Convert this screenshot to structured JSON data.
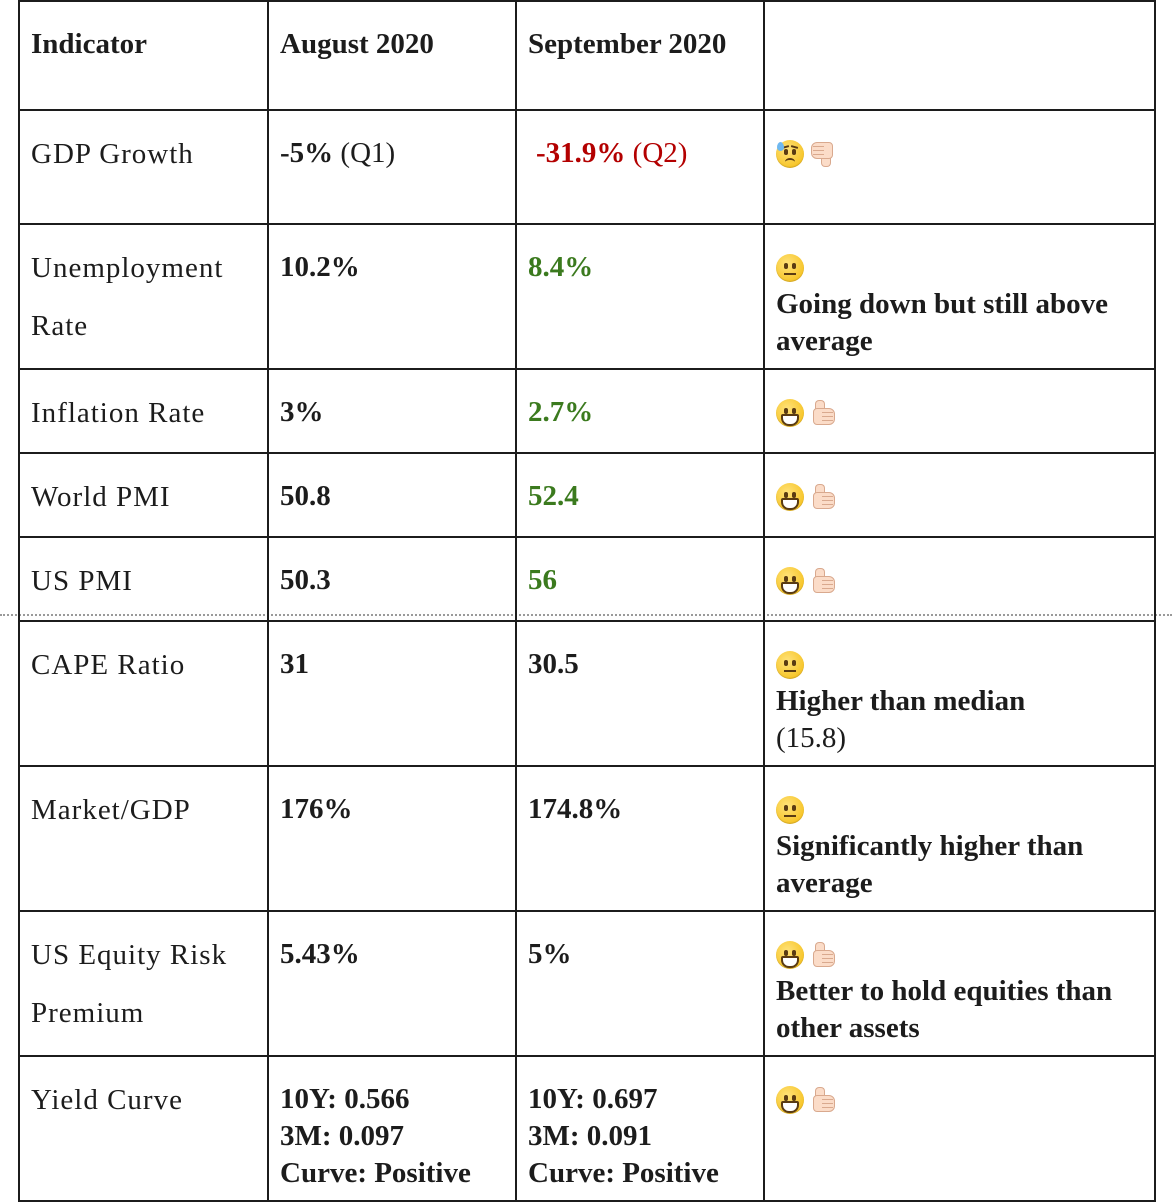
{
  "header": {
    "col0": "Indicator",
    "col1": "August 2020",
    "col2": "September 2020",
    "col3": ""
  },
  "rows": [
    {
      "indicator": "GDP Growth",
      "august": {
        "text": "-5%",
        "paren": "(Q1)"
      },
      "september": {
        "text": "-31.9%",
        "paren": "(Q2)",
        "status": "worse"
      },
      "rating_icons": [
        "downcast-sweat-face-icon",
        "thumbs-down-icon"
      ],
      "note": ""
    },
    {
      "indicator": "Unemployment Rate",
      "august": {
        "text": "10.2%"
      },
      "september": {
        "text": "8.4%",
        "status": "better"
      },
      "rating_icons": [
        "neutral-face-icon"
      ],
      "note": "Going down but still above average"
    },
    {
      "indicator": "Inflation Rate",
      "august": {
        "text": "3%"
      },
      "september": {
        "text": "2.7%",
        "status": "better"
      },
      "rating_icons": [
        "grinning-face-icon",
        "thumbs-up-icon"
      ],
      "note": ""
    },
    {
      "indicator": "World PMI",
      "august": {
        "text": "50.8"
      },
      "september": {
        "text": "52.4",
        "status": "better"
      },
      "rating_icons": [
        "grinning-face-icon",
        "thumbs-up-icon"
      ],
      "note": ""
    },
    {
      "indicator": "US PMI",
      "august": {
        "text": "50.3"
      },
      "september": {
        "text": "56",
        "status": "better"
      },
      "rating_icons": [
        "grinning-face-icon",
        "thumbs-up-icon"
      ],
      "note": ""
    },
    {
      "indicator": "CAPE Ratio",
      "august": {
        "text": "31"
      },
      "september": {
        "text": "30.5"
      },
      "rating_icons": [
        "neutral-face-icon"
      ],
      "note": "Higher than median",
      "note_paren": "(15.8)"
    },
    {
      "indicator": "Market/GDP",
      "august": {
        "text": "176%"
      },
      "september": {
        "text": "174.8%"
      },
      "rating_icons": [
        "neutral-face-icon"
      ],
      "note": "Significantly higher than average"
    },
    {
      "indicator": "US Equity Risk Premium",
      "august": {
        "text": "5.43%"
      },
      "september": {
        "text": "5%"
      },
      "rating_icons": [
        "grinning-face-icon",
        "thumbs-up-icon"
      ],
      "note": "Better to hold equities than other assets"
    },
    {
      "indicator": "Yield Curve",
      "august": {
        "lines": [
          "10Y: 0.566",
          "3M: 0.097",
          "Curve: Positive"
        ]
      },
      "september": {
        "lines": [
          "10Y: 0.697",
          "3M: 0.091",
          "Curve: Positive"
        ]
      },
      "rating_icons": [
        "grinning-face-icon",
        "thumbs-up-icon"
      ],
      "note": ""
    }
  ],
  "colors": {
    "better": "#3b7a1e",
    "worse": "#b30000",
    "border": "#1c1c1c"
  }
}
